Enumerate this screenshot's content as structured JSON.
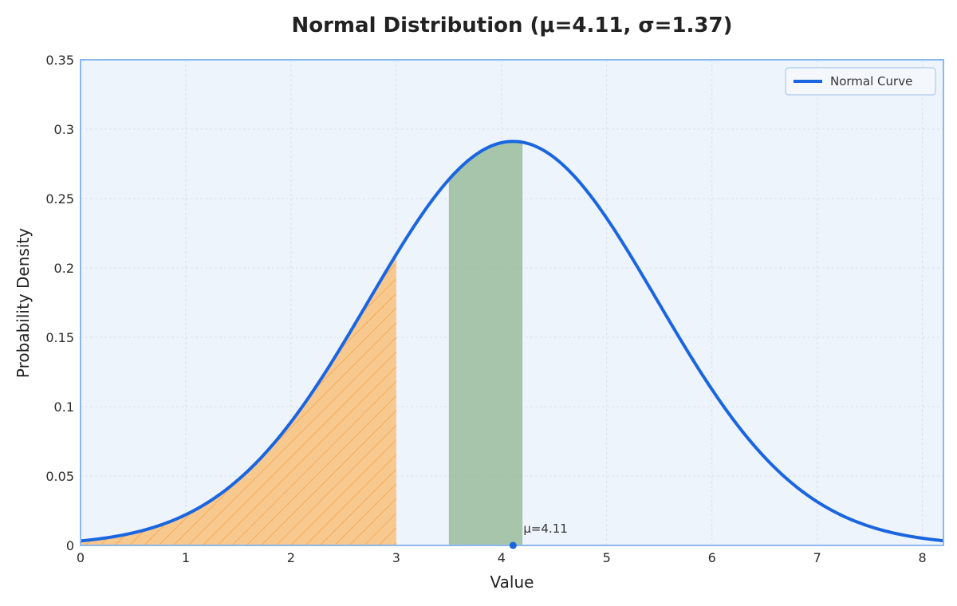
{
  "chart_data": {
    "type": "area",
    "title": "Normal Distribution (μ=4.11, σ=1.37)",
    "xlabel": "Value",
    "ylabel": "Probability Density",
    "xlim": [
      0,
      8.2
    ],
    "ylim": [
      0,
      0.35
    ],
    "x_ticks": [
      "0",
      "1",
      "2",
      "3",
      "4",
      "5",
      "6",
      "7",
      "8"
    ],
    "y_ticks": [
      "0",
      "0.05",
      "0.1",
      "0.15",
      "0.2",
      "0.25",
      "0.3",
      "0.35"
    ],
    "grid": true,
    "legend_position": "top-right",
    "distribution": {
      "mean": 4.11,
      "std": 1.37
    },
    "series": [
      {
        "name": "Normal Curve",
        "color": "#1a66e0",
        "kind": "line"
      }
    ],
    "shaded_regions": [
      {
        "from": 0,
        "to": 3.0,
        "color": "#f7b565",
        "hatch": true
      },
      {
        "from": 3.5,
        "to": 4.2,
        "color": "#8fb58f",
        "hatch": false
      }
    ],
    "annotations": [
      {
        "text": "μ=4.11",
        "x": 4.11,
        "y": 0
      }
    ],
    "colors": {
      "plot_background": "#eef4fc",
      "frame": "#8cb8f0",
      "grid": "#d6e2f0"
    }
  }
}
